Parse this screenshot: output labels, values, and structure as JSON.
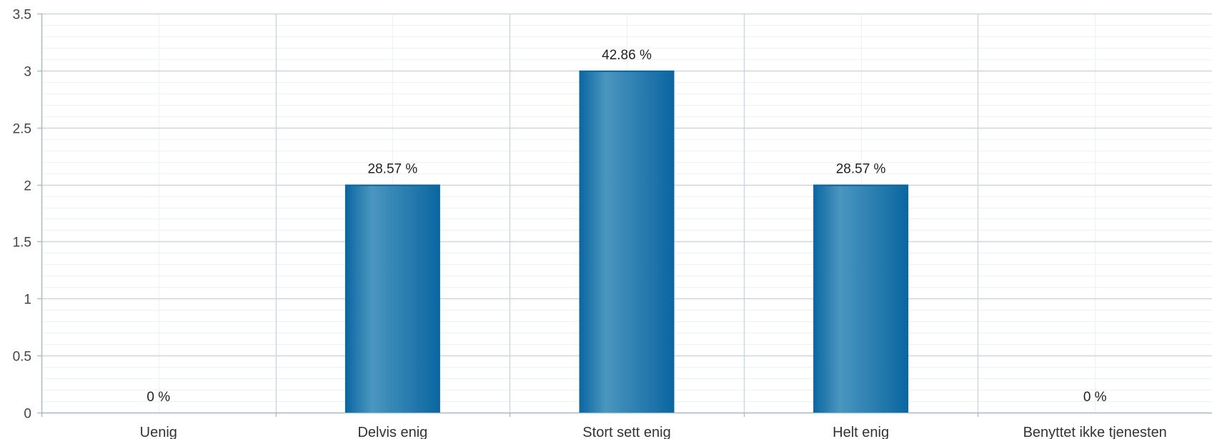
{
  "chart_data": {
    "type": "bar",
    "title": "",
    "xlabel": "",
    "ylabel": "",
    "categories": [
      "Uenig",
      "Delvis enig",
      "Stort sett enig",
      "Helt enig",
      "Benyttet ikke tjenesten"
    ],
    "values": [
      0,
      2,
      3,
      2,
      0
    ],
    "data_labels": [
      "0 %",
      "28.57 %",
      "42.86 %",
      "28.57 %",
      "0 %"
    ],
    "ylim": [
      0,
      3.5
    ],
    "yticks": [
      0,
      0.5,
      1,
      1.5,
      2,
      2.5,
      3,
      3.5
    ],
    "ytick_labels": [
      "0",
      "0.5",
      "1",
      "1.5",
      "2",
      "2.5",
      "3",
      "3.5"
    ],
    "minor_ticks_per_major": 5,
    "grid": true,
    "legend": "none",
    "colors": {
      "bar_edge": "#0a66a0",
      "bar_mid": "#4a96c0",
      "grid_major": "#cdd6dc",
      "grid_minor": "#eef2f4",
      "axis": "#b0bcc4"
    }
  }
}
